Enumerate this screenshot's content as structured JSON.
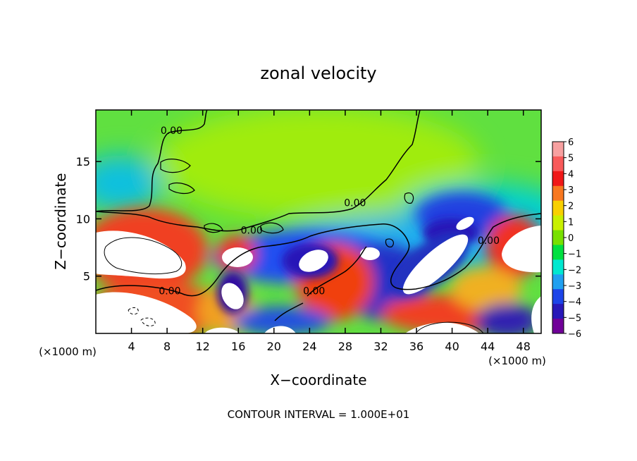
{
  "chart_data": {
    "type": "heatmap",
    "title": "zonal velocity",
    "xlabel": "X−coordinate",
    "ylabel": "Z−coordinate",
    "x_unit": "(×1000 m)",
    "z_unit": "(×1000 m)",
    "xlim": [
      0,
      50
    ],
    "ylim": [
      0,
      19.5
    ],
    "x_ticks": [
      4,
      8,
      12,
      16,
      20,
      24,
      28,
      32,
      36,
      40,
      44,
      48
    ],
    "x_tick_labels": [
      "4",
      "8",
      "12",
      "16",
      "20",
      "24",
      "28",
      "32",
      "36",
      "40",
      "44",
      "48"
    ],
    "y_ticks": [
      5,
      10,
      15
    ],
    "y_tick_labels": [
      "5",
      "10",
      "15"
    ],
    "colorbar": {
      "values": [
        6,
        5,
        4,
        3,
        2,
        1,
        0,
        -1,
        -2,
        -3,
        -4,
        -5,
        -6
      ],
      "labels": [
        "6",
        "5",
        "4",
        "3",
        "2",
        "1",
        "0",
        "−1",
        "−2",
        "−3",
        "−4",
        "−5",
        "−6"
      ],
      "colors": [
        "#f7a0a0",
        "#f85a5a",
        "#f01818",
        "#f87820",
        "#f8d000",
        "#c8f000",
        "#78e000",
        "#00e040",
        "#00e8d0",
        "#20a0f0",
        "#1c44e8",
        "#2818b8",
        "#700098"
      ],
      "out_of_range_color": "#ffffff"
    },
    "contour_labels": [
      {
        "text": "0.00",
        "x": 17.5,
        "z": 8.7
      },
      {
        "text": "0.00",
        "x": 8.5,
        "z": 17.4
      },
      {
        "text": "0.00",
        "x": 29.1,
        "z": 11.1
      },
      {
        "text": "0.00",
        "x": 24.5,
        "z": 3.4
      },
      {
        "text": "0.00",
        "x": 44.1,
        "z": 7.8
      },
      {
        "text": "0.00",
        "x": 8.3,
        "z": 3.4
      }
    ],
    "contour_interval_label": "CONTOUR INTERVAL = 1.000E+01"
  }
}
